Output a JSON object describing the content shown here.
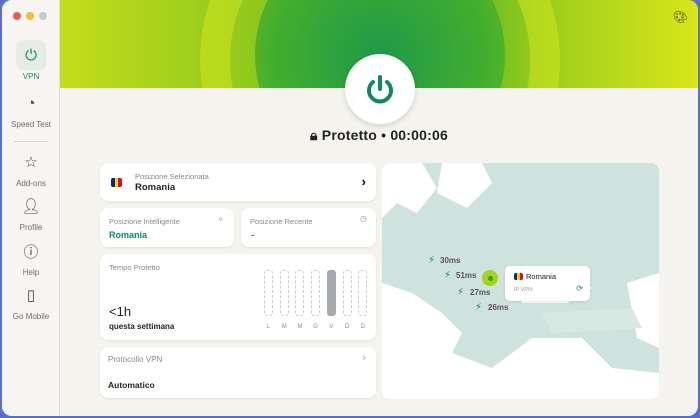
{
  "sidebar": {
    "items": [
      {
        "label": "VPN",
        "icon": "power-icon",
        "active": true
      },
      {
        "label": "Speed Test",
        "icon": "speedometer-icon"
      },
      {
        "label": "Add-ons",
        "icon": "star-icon"
      },
      {
        "label": "Profile",
        "icon": "person-icon"
      },
      {
        "label": "Help",
        "icon": "help-icon"
      },
      {
        "label": "Go Mobile",
        "icon": "phone-icon"
      }
    ]
  },
  "status": {
    "text": "Protetto • 00:00:06",
    "icon": "lock-icon"
  },
  "selected": {
    "label": "Posizione Selezionata",
    "value": "Romania"
  },
  "smart": {
    "label": "Posizione Intelligente",
    "value": "Romania"
  },
  "recent": {
    "label": "Posizione Recente",
    "value": "-"
  },
  "time": {
    "label": "Tempo Protetto",
    "value": "<1h",
    "sub": "questa settimana",
    "days": [
      "L",
      "M",
      "M",
      "G",
      "V",
      "D",
      "D"
    ],
    "active_day_index": 4
  },
  "protocol": {
    "label": "Protocollo VPN",
    "value": "Automatico"
  },
  "map": {
    "pings": [
      "30ms",
      "51ms",
      "27ms",
      "26ms"
    ],
    "popup": {
      "country": "Romania",
      "ip_label": "IP VPN:"
    }
  },
  "colors": {
    "accent": "#0f8a5f",
    "header_green": "#7fc21e"
  }
}
